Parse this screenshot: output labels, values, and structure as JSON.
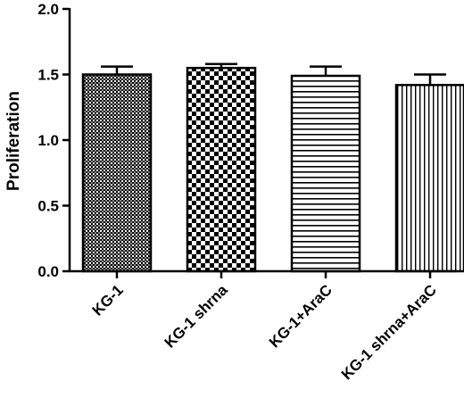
{
  "chart_data": {
    "type": "bar",
    "title": "",
    "xlabel": "",
    "ylabel": "Proliferation",
    "ylim": [
      0,
      2.0
    ],
    "yticks": [
      "0.0",
      "0.5",
      "1.0",
      "1.5",
      "2.0"
    ],
    "grid": false,
    "categories": [
      "KG-1",
      "KG-1 shrna",
      "KG-1+AraC",
      "KG-1 shrna+AraC"
    ],
    "values": [
      1.5,
      1.55,
      1.49,
      1.42
    ],
    "errors": [
      0.06,
      0.03,
      0.07,
      0.08
    ],
    "fill_patterns": [
      "fine-crosshatch",
      "checkerboard",
      "horizontal-stripes",
      "vertical-stripes"
    ],
    "bar_color": "#000000",
    "background_color": "#ffffff"
  }
}
